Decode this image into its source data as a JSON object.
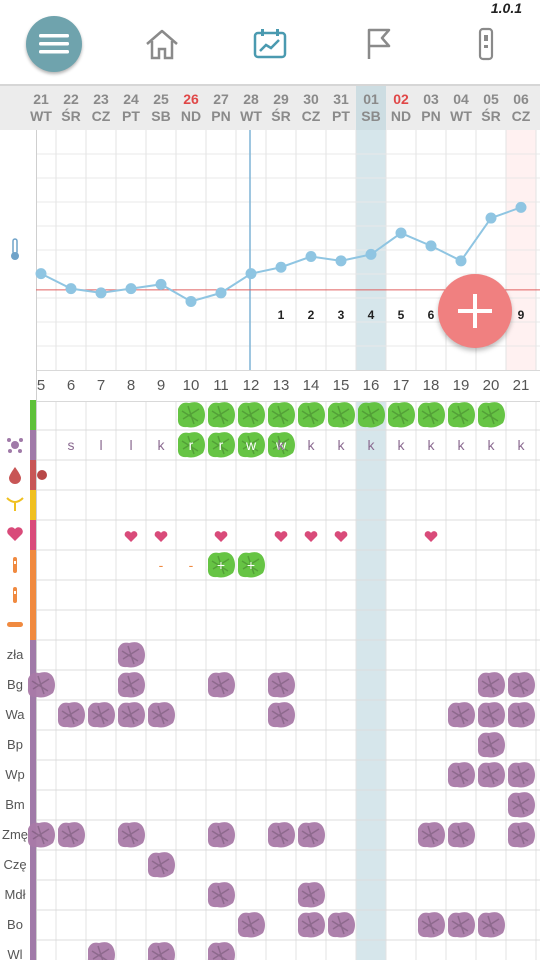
{
  "app": {
    "version": "1.0.1"
  },
  "nav": [
    {
      "name": "menu",
      "icon": "menu-icon"
    },
    {
      "name": "home",
      "icon": "home-icon"
    },
    {
      "name": "chart",
      "icon": "chart-icon"
    },
    {
      "name": "flag",
      "icon": "flag-icon"
    },
    {
      "name": "device",
      "icon": "thermometer-icon"
    }
  ],
  "dates": [
    {
      "d": "21",
      "w": "WT",
      "red": false
    },
    {
      "d": "22",
      "w": "ŚR",
      "red": false
    },
    {
      "d": "23",
      "w": "CZ",
      "red": false
    },
    {
      "d": "24",
      "w": "PT",
      "red": false
    },
    {
      "d": "25",
      "w": "SB",
      "red": false
    },
    {
      "d": "26",
      "w": "ND",
      "red": true
    },
    {
      "d": "27",
      "w": "PN",
      "red": false
    },
    {
      "d": "28",
      "w": "WT",
      "red": false
    },
    {
      "d": "29",
      "w": "ŚR",
      "red": false
    },
    {
      "d": "30",
      "w": "CZ",
      "red": false
    },
    {
      "d": "31",
      "w": "PT",
      "red": false
    },
    {
      "d": "01",
      "w": "SB",
      "red": false
    },
    {
      "d": "02",
      "w": "ND",
      "red": true
    },
    {
      "d": "03",
      "w": "PN",
      "red": false
    },
    {
      "d": "04",
      "w": "WT",
      "red": false
    },
    {
      "d": "05",
      "w": "ŚR",
      "red": false
    },
    {
      "d": "06",
      "w": "CZ",
      "red": false
    }
  ],
  "cycle_days": [
    "5",
    "6",
    "7",
    "8",
    "9",
    "10",
    "11",
    "12",
    "13",
    "14",
    "15",
    "16",
    "17",
    "18",
    "19",
    "20",
    "21"
  ],
  "temperature": {
    "values": [
      36.42,
      36.35,
      36.33,
      36.35,
      36.37,
      36.29,
      36.33,
      36.42,
      36.45,
      36.5,
      36.48,
      36.51,
      36.61,
      36.55,
      36.48,
      36.68,
      36.73
    ],
    "coverline": 36.33,
    "post_ovulation_days": [
      "1",
      "2",
      "3",
      "4",
      "5",
      "6",
      "7",
      "8",
      "9"
    ]
  },
  "rows": [
    {
      "key": "green",
      "label": "",
      "icon": "",
      "color": "#5ec13a"
    },
    {
      "key": "mucus",
      "label": "",
      "icon": "splat-icon",
      "color": "#a07aa8"
    },
    {
      "key": "bleeding",
      "label": "",
      "icon": "drop-icon",
      "color": "#c85656"
    },
    {
      "key": "cervix",
      "label": "",
      "icon": "cervix-icon",
      "color": "#f0c020"
    },
    {
      "key": "sex",
      "label": "",
      "icon": "heart-icon",
      "color": "#d94b7a"
    },
    {
      "key": "test1",
      "label": "",
      "icon": "test-icon",
      "color": "#f08a40"
    },
    {
      "key": "test2",
      "label": "",
      "icon": "test-icon",
      "color": "#f08a40"
    },
    {
      "key": "test3",
      "label": "",
      "icon": "pill-icon",
      "color": "#f08a40"
    },
    {
      "key": "zla",
      "label": "zła",
      "icon": "",
      "color": "#a07aa8"
    },
    {
      "key": "bg",
      "label": "Bg",
      "icon": "",
      "color": "#a07aa8"
    },
    {
      "key": "wa",
      "label": "Wa",
      "icon": "",
      "color": "#a07aa8"
    },
    {
      "key": "bp",
      "label": "Bp",
      "icon": "",
      "color": "#a07aa8"
    },
    {
      "key": "wp",
      "label": "Wp",
      "icon": "",
      "color": "#a07aa8"
    },
    {
      "key": "bm",
      "label": "Bm",
      "icon": "",
      "color": "#a07aa8"
    },
    {
      "key": "zme",
      "label": "Zmę",
      "icon": "",
      "color": "#a07aa8"
    },
    {
      "key": "cze",
      "label": "Czę",
      "icon": "",
      "color": "#a07aa8"
    },
    {
      "key": "mdl",
      "label": "Mdł",
      "icon": "",
      "color": "#a07aa8"
    },
    {
      "key": "bo",
      "label": "Bo",
      "icon": "",
      "color": "#a07aa8"
    },
    {
      "key": "wl",
      "label": "Wl",
      "icon": "",
      "color": "#a07aa8"
    }
  ],
  "mucus_letters": {
    "1": "s",
    "2": "l",
    "3": "l",
    "4": "k",
    "8": "k",
    "9": "k",
    "10": "k",
    "11": "k",
    "12": "k",
    "13": "k",
    "14": "k",
    "15": "k",
    "16": "k"
  },
  "green_blob_letters": {
    "5": "r",
    "6": "r",
    "7": "w",
    "8": "w"
  },
  "green_days": [
    5,
    6,
    7,
    8,
    9,
    10,
    11,
    12,
    13,
    14,
    15
  ],
  "mucus_green_days": [
    5,
    6,
    7,
    8
  ],
  "hearts": [
    3,
    4,
    6,
    8,
    9,
    10,
    13
  ],
  "test_dash": [
    4,
    5
  ],
  "test_plus": [
    6,
    7
  ],
  "bleeding_dot": [
    0
  ],
  "symptoms": {
    "zla": [
      3
    ],
    "bg": [
      0,
      3,
      6,
      8,
      15,
      16
    ],
    "wa": [
      1,
      2,
      3,
      4,
      8,
      14,
      15,
      16
    ],
    "bp": [
      15
    ],
    "wp": [
      14,
      15,
      16
    ],
    "bm": [
      16
    ],
    "zme": [
      0,
      1,
      3,
      6,
      8,
      9,
      13,
      14,
      16
    ],
    "cze": [
      4
    ],
    "mdl": [
      6,
      9
    ],
    "bo": [
      7,
      9,
      10,
      13,
      14,
      15
    ],
    "wl": [
      2,
      4,
      6
    ]
  }
}
